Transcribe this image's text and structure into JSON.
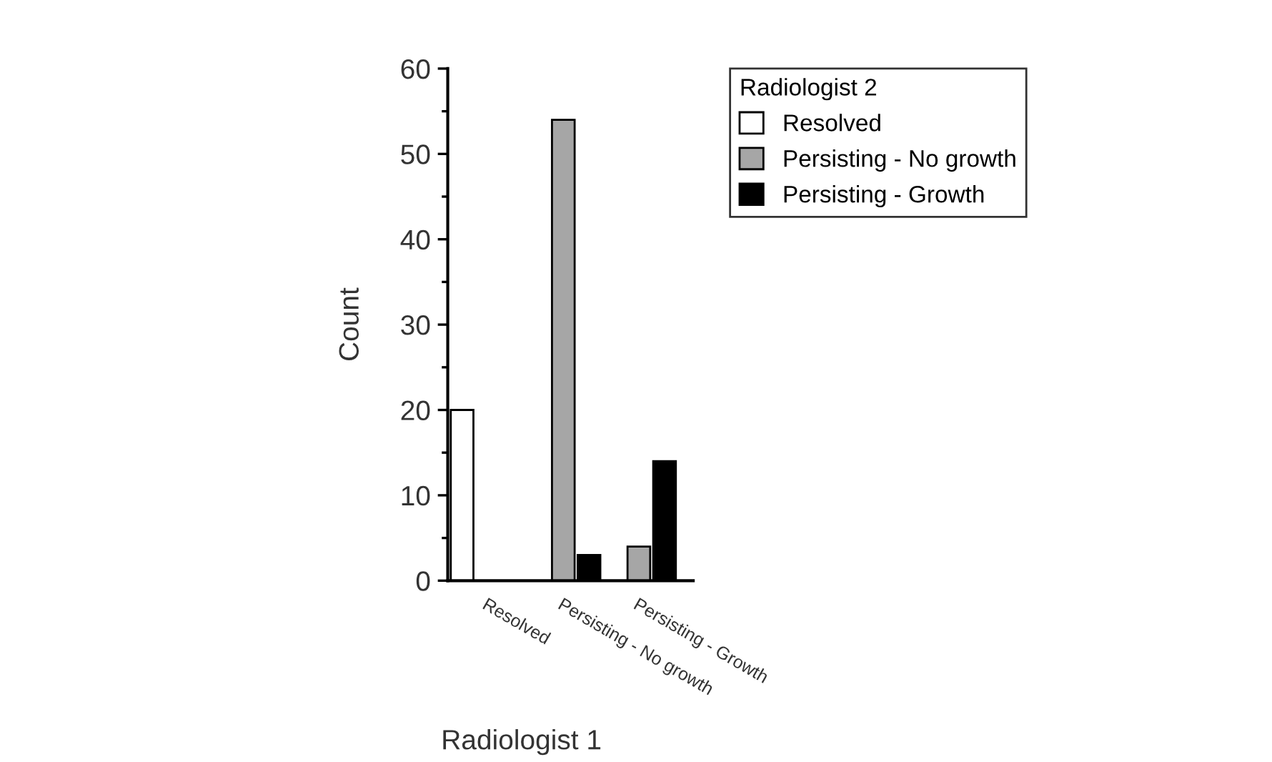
{
  "chart_data": {
    "type": "bar",
    "xlabel": "Radiologist 1",
    "ylabel": "Count",
    "legend_title": "Radiologist 2",
    "legend": "top right",
    "categories": [
      "Resolved",
      "Persisting - No growth",
      "Persisting - Growth"
    ],
    "series": [
      {
        "name": "Resolved",
        "color": "#ffffff",
        "values": [
          20,
          null,
          null
        ]
      },
      {
        "name": "Persisting - No growth",
        "color": "#a6a6a6",
        "values": [
          null,
          54,
          4
        ]
      },
      {
        "name": "Persisting - Growth",
        "color": "#000000",
        "values": [
          null,
          3,
          14
        ]
      }
    ],
    "ylim": [
      0,
      60
    ],
    "yticks": [
      0,
      {
        "value": 5,
        "label": null
      },
      10,
      {
        "value": 15,
        "label": null
      },
      20,
      {
        "value": 25,
        "label": null
      },
      30,
      {
        "value": 35,
        "label": null
      },
      40,
      {
        "value": 45,
        "label": null
      },
      50,
      {
        "value": 55,
        "label": null
      },
      60
    ],
    "grid": false
  }
}
